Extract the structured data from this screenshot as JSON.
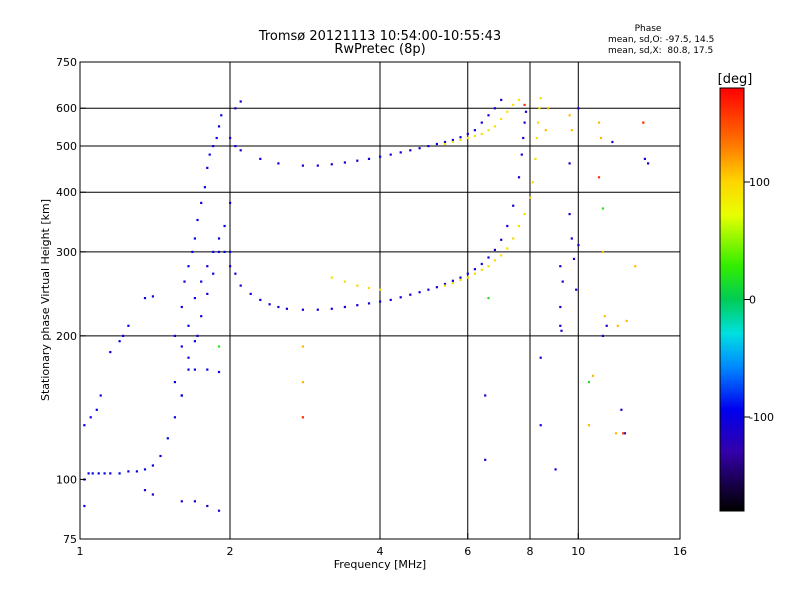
{
  "chart_data": {
    "type": "scatter",
    "title": "Tromsø 20121113 10:54:00-10:55:43",
    "subtitle": "RwPretec (8p)",
    "xlabel": "Frequency [MHz]",
    "ylabel": "Stationary phase Virtual Height [km]",
    "x_scale": "log",
    "y_scale": "log",
    "xlim": [
      1,
      16
    ],
    "ylim": [
      75,
      750
    ],
    "x_ticks": [
      1,
      2,
      4,
      6,
      8,
      10,
      16
    ],
    "x_tick_labels": [
      "1",
      "2",
      "4",
      "6",
      "8",
      "10",
      "16"
    ],
    "y_ticks": [
      75,
      100,
      200,
      300,
      400,
      500,
      600,
      750
    ],
    "y_tick_labels": [
      "75",
      "100",
      "200",
      "300",
      "400",
      "500",
      "600",
      "750"
    ],
    "x_grid": [
      2,
      4,
      6,
      8,
      10
    ],
    "y_grid": [
      200,
      300,
      400,
      500,
      600
    ],
    "grid": true,
    "stats": {
      "title": "Phase",
      "line_o": "mean, sd,O: -97.5, 14.5",
      "line_x": "mean, sd,X:  80.8, 17.5"
    },
    "colorbar": {
      "label": "[deg]",
      "min": -180,
      "max": 180,
      "ticks": [
        100,
        0,
        -100
      ],
      "tick_labels": [
        "100",
        "0",
        "-100"
      ]
    },
    "series": [
      {
        "trace": "low_o_trace",
        "color_phase": -100,
        "points": [
          [
            1.02,
            88
          ],
          [
            1.02,
            100
          ],
          [
            1.04,
            103
          ],
          [
            1.06,
            103
          ],
          [
            1.09,
            103
          ],
          [
            1.12,
            103
          ],
          [
            1.15,
            103
          ],
          [
            1.2,
            103
          ],
          [
            1.25,
            104
          ],
          [
            1.3,
            104
          ],
          [
            1.35,
            105
          ],
          [
            1.4,
            107
          ],
          [
            1.45,
            112
          ],
          [
            1.5,
            122
          ],
          [
            1.55,
            135
          ],
          [
            1.6,
            150
          ],
          [
            1.65,
            170
          ],
          [
            1.7,
            195
          ],
          [
            1.75,
            220
          ],
          [
            1.8,
            245
          ],
          [
            1.85,
            270
          ],
          [
            1.9,
            300
          ],
          [
            1.95,
            340
          ],
          [
            2.0,
            380
          ],
          [
            1.02,
            130
          ],
          [
            1.05,
            135
          ],
          [
            1.08,
            140
          ],
          [
            1.1,
            150
          ],
          [
            1.15,
            185
          ],
          [
            1.2,
            195
          ],
          [
            1.22,
            200
          ],
          [
            1.25,
            210
          ],
          [
            1.35,
            240
          ],
          [
            1.4,
            242
          ]
        ]
      },
      {
        "trace": "f_o_trace",
        "color_phase": -105,
        "points": [
          [
            2.0,
            300
          ],
          [
            2.05,
            270
          ],
          [
            2.1,
            255
          ],
          [
            2.2,
            245
          ],
          [
            2.3,
            238
          ],
          [
            2.4,
            233
          ],
          [
            2.5,
            230
          ],
          [
            2.6,
            228
          ],
          [
            2.8,
            227
          ],
          [
            3.0,
            227
          ],
          [
            3.2,
            228
          ],
          [
            3.4,
            230
          ],
          [
            3.6,
            232
          ],
          [
            3.8,
            234
          ],
          [
            4.0,
            236
          ],
          [
            4.2,
            238
          ],
          [
            4.4,
            241
          ],
          [
            4.6,
            244
          ],
          [
            4.8,
            247
          ],
          [
            5.0,
            250
          ],
          [
            5.2,
            253
          ],
          [
            5.4,
            257
          ],
          [
            5.6,
            261
          ],
          [
            5.8,
            265
          ],
          [
            6.0,
            270
          ],
          [
            6.2,
            276
          ],
          [
            6.4,
            283
          ],
          [
            6.6,
            292
          ],
          [
            6.8,
            303
          ],
          [
            7.0,
            318
          ],
          [
            7.2,
            340
          ],
          [
            7.4,
            375
          ],
          [
            7.6,
            430
          ],
          [
            7.7,
            480
          ],
          [
            7.75,
            520
          ],
          [
            7.8,
            560
          ],
          [
            7.85,
            590
          ]
        ]
      },
      {
        "trace": "f_x_trace",
        "color_phase": 95,
        "points": [
          [
            3.2,
            265
          ],
          [
            3.4,
            260
          ],
          [
            3.6,
            255
          ],
          [
            3.8,
            252
          ],
          [
            4.0,
            250
          ],
          [
            5.4,
            255
          ],
          [
            5.6,
            258
          ],
          [
            5.8,
            262
          ],
          [
            6.0,
            265
          ],
          [
            6.2,
            270
          ],
          [
            6.4,
            275
          ],
          [
            6.6,
            280
          ],
          [
            6.8,
            288
          ],
          [
            7.0,
            295
          ],
          [
            7.2,
            305
          ],
          [
            7.4,
            320
          ],
          [
            7.6,
            340
          ],
          [
            7.8,
            360
          ],
          [
            8.0,
            390
          ],
          [
            8.1,
            420
          ],
          [
            8.2,
            470
          ],
          [
            8.25,
            520
          ],
          [
            8.3,
            560
          ],
          [
            8.35,
            600
          ],
          [
            8.4,
            630
          ]
        ]
      },
      {
        "trace": "echo_2f_o",
        "color_phase": -105,
        "points": [
          [
            2.0,
            520
          ],
          [
            2.05,
            500
          ],
          [
            2.1,
            490
          ],
          [
            2.3,
            470
          ],
          [
            2.5,
            460
          ],
          [
            2.8,
            455
          ],
          [
            3.0,
            455
          ],
          [
            3.2,
            458
          ],
          [
            3.4,
            462
          ],
          [
            3.6,
            466
          ],
          [
            3.8,
            470
          ],
          [
            4.0,
            475
          ],
          [
            4.2,
            480
          ],
          [
            4.4,
            485
          ],
          [
            4.6,
            490
          ],
          [
            4.8,
            495
          ],
          [
            5.0,
            500
          ],
          [
            5.2,
            505
          ],
          [
            5.4,
            510
          ],
          [
            5.6,
            515
          ],
          [
            5.8,
            522
          ],
          [
            6.0,
            530
          ],
          [
            6.2,
            540
          ],
          [
            6.4,
            560
          ],
          [
            6.6,
            580
          ],
          [
            6.8,
            600
          ],
          [
            7.0,
            625
          ],
          [
            2.05,
            600
          ],
          [
            2.1,
            620
          ]
        ]
      },
      {
        "trace": "echo_2f_x",
        "color_phase": 90,
        "points": [
          [
            5.4,
            505
          ],
          [
            5.6,
            510
          ],
          [
            5.8,
            515
          ],
          [
            6.0,
            520
          ],
          [
            6.2,
            525
          ],
          [
            6.4,
            530
          ],
          [
            6.6,
            540
          ],
          [
            6.8,
            550
          ],
          [
            7.0,
            570
          ],
          [
            7.2,
            590
          ],
          [
            7.4,
            610
          ],
          [
            7.6,
            625
          ]
        ]
      },
      {
        "trace": "spread_f_cloud",
        "color_phase": -100,
        "points": [
          [
            1.55,
            200
          ],
          [
            1.6,
            230
          ],
          [
            1.62,
            260
          ],
          [
            1.65,
            280
          ],
          [
            1.68,
            300
          ],
          [
            1.7,
            320
          ],
          [
            1.72,
            350
          ],
          [
            1.75,
            380
          ],
          [
            1.78,
            410
          ],
          [
            1.8,
            450
          ],
          [
            1.82,
            480
          ],
          [
            1.85,
            500
          ],
          [
            1.88,
            520
          ],
          [
            1.9,
            550
          ],
          [
            1.92,
            580
          ],
          [
            1.6,
            190
          ],
          [
            1.65,
            210
          ],
          [
            1.7,
            240
          ],
          [
            1.75,
            260
          ],
          [
            1.8,
            280
          ],
          [
            1.85,
            300
          ],
          [
            1.9,
            320
          ],
          [
            1.95,
            300
          ],
          [
            2.0,
            280
          ],
          [
            1.7,
            170
          ],
          [
            1.8,
            170
          ],
          [
            1.9,
            168
          ],
          [
            1.55,
            160
          ],
          [
            1.6,
            150
          ],
          [
            1.65,
            180
          ],
          [
            1.72,
            200
          ]
        ]
      },
      {
        "trace": "scattered_high_freq",
        "color_phase": -110,
        "points": [
          [
            9.2,
            280
          ],
          [
            9.2,
            230
          ],
          [
            9.2,
            210
          ],
          [
            9.25,
            205
          ],
          [
            9.3,
            260
          ],
          [
            9.6,
            460
          ],
          [
            9.6,
            360
          ],
          [
            9.7,
            320
          ],
          [
            9.8,
            290
          ],
          [
            9.9,
            250
          ],
          [
            10.0,
            600
          ],
          [
            10.0,
            310
          ],
          [
            6.5,
            150
          ],
          [
            6.5,
            110
          ],
          [
            8.4,
            130
          ],
          [
            8.4,
            180
          ],
          [
            9.0,
            105
          ],
          [
            11.2,
            200
          ],
          [
            11.4,
            210
          ],
          [
            11.7,
            510
          ],
          [
            12.2,
            140
          ],
          [
            12.4,
            125
          ],
          [
            13.6,
            470
          ],
          [
            13.8,
            460
          ],
          [
            1.35,
            95
          ],
          [
            1.4,
            93
          ],
          [
            1.6,
            90
          ],
          [
            1.7,
            90
          ],
          [
            1.8,
            88
          ],
          [
            1.9,
            86
          ]
        ]
      },
      {
        "trace": "scattered_warm",
        "color_phase": 110,
        "points": [
          [
            11.0,
            560
          ],
          [
            11.1,
            520
          ],
          [
            11.2,
            300
          ],
          [
            11.3,
            220
          ],
          [
            10.7,
            165
          ],
          [
            10.5,
            130
          ],
          [
            12.0,
            210
          ],
          [
            12.5,
            215
          ],
          [
            13.0,
            280
          ],
          [
            13.5,
            560
          ],
          [
            2.8,
            190
          ],
          [
            2.8,
            160
          ],
          [
            2.8,
            135
          ],
          [
            8.6,
            540
          ],
          [
            8.7,
            600
          ],
          [
            9.6,
            580
          ],
          [
            9.7,
            540
          ],
          [
            11.9,
            125
          ]
        ]
      },
      {
        "trace": "scattered_red",
        "color_phase": 160,
        "points": [
          [
            13.5,
            560
          ],
          [
            12.3,
            125
          ],
          [
            11.0,
            430
          ],
          [
            7.8,
            610
          ],
          [
            2.8,
            135
          ]
        ]
      },
      {
        "trace": "scattered_green",
        "color_phase": 20,
        "points": [
          [
            1.9,
            190
          ],
          [
            6.6,
            240
          ],
          [
            10.5,
            160
          ],
          [
            11.2,
            370
          ]
        ]
      }
    ]
  }
}
